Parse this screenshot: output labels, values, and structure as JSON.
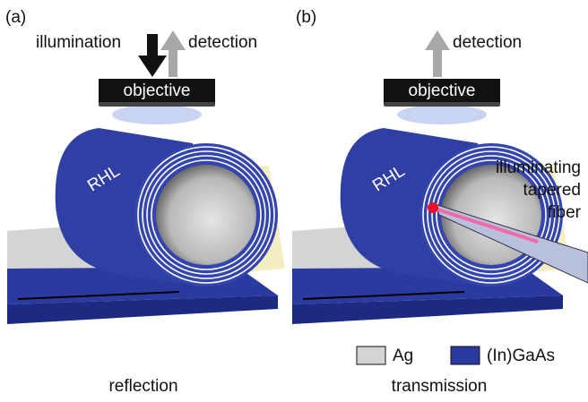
{
  "panels": [
    {
      "label": "(a)",
      "illumination": "illumination",
      "detection": "detection",
      "objective": "objective",
      "tube_label": "RHL",
      "caption": "reflection"
    },
    {
      "label": "(b)",
      "detection": "detection",
      "objective": "objective",
      "tube_label": "RHL",
      "fiber_label": [
        "illuminating",
        "tapered",
        "fiber"
      ],
      "caption": "transmission"
    }
  ],
  "legend": [
    {
      "label": "Ag"
    },
    {
      "label": "(In)GaAs"
    }
  ]
}
